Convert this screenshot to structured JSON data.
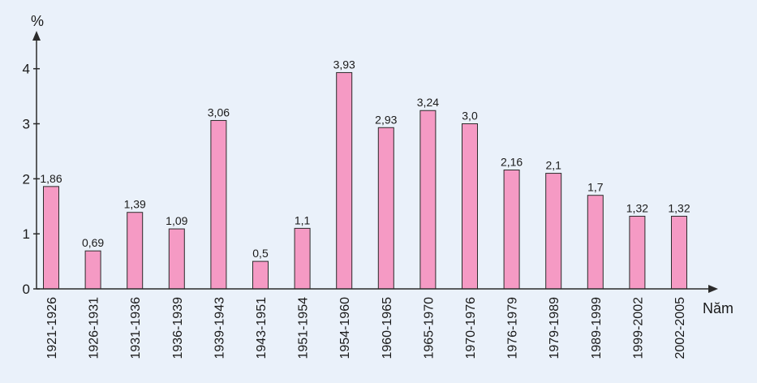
{
  "chart_data": {
    "type": "bar",
    "title": "",
    "ylabel": "%",
    "xlabel": "Năm",
    "ylim": [
      0,
      4.6
    ],
    "yticks": [
      0,
      1,
      2,
      3,
      4
    ],
    "ytick_labels": [
      "0",
      "1",
      "2",
      "3",
      "4"
    ],
    "grid": false,
    "colors": {
      "bar_fill": "#f59ac4",
      "bar_stroke": "#2b2b2b",
      "background": "#eaf1fa",
      "axis": "#2b2b2b"
    },
    "categories": [
      "1921-1926",
      "1926-1931",
      "1931-1936",
      "1936-1939",
      "1939-1943",
      "1943-1951",
      "1951-1954",
      "1954-1960",
      "1960-1965",
      "1965-1970",
      "1970-1976",
      "1976-1979",
      "1979-1989",
      "1989-1999",
      "1999-2002",
      "2002-2005"
    ],
    "values": [
      1.86,
      0.69,
      1.39,
      1.09,
      3.06,
      0.5,
      1.1,
      3.93,
      2.93,
      3.24,
      3.0,
      2.16,
      2.1,
      1.7,
      1.32,
      1.32
    ],
    "value_labels": [
      "1,86",
      "0,69",
      "1,39",
      "1,09",
      "3,06",
      "0,5",
      "1,1",
      "3,93",
      "2,93",
      "3,24",
      "3,0",
      "2,16",
      "2,1",
      "1,7",
      "1,32",
      "1,32"
    ]
  }
}
